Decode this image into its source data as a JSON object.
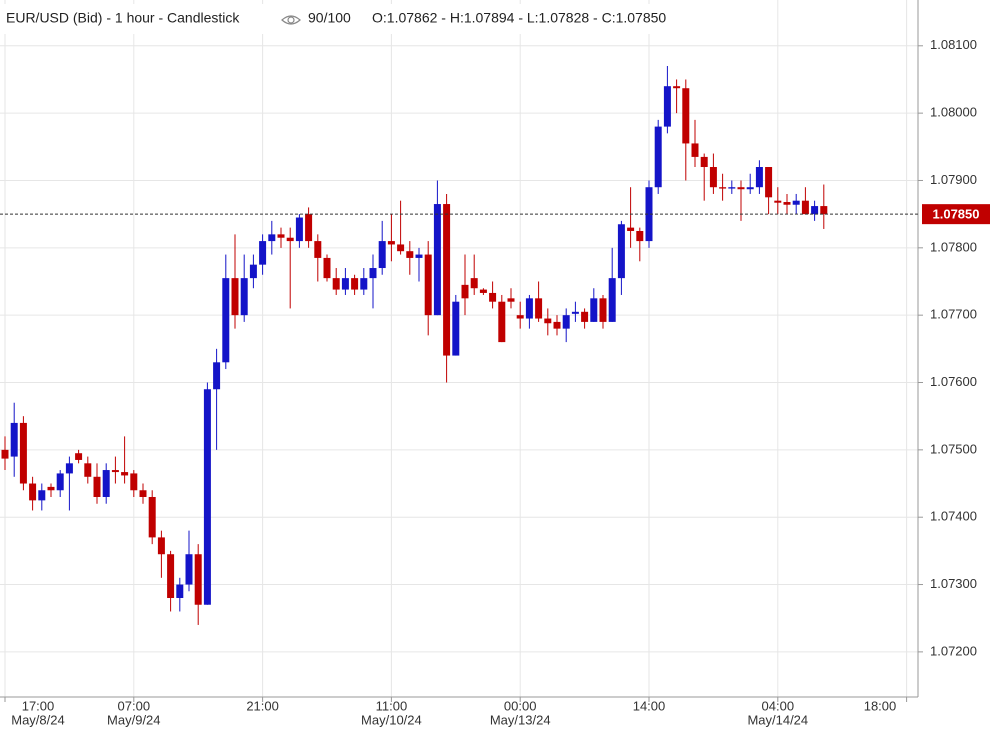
{
  "chart_data": {
    "type": "candlestick",
    "title": "EUR/USD (Bid) - 1 hour - Candlestick",
    "zoom": "90/100",
    "ohlc_summary": "O:1.07862 - H:1.07894 - L:1.07828 - C:1.07850",
    "up_color": "#1414c8",
    "down_color": "#c00000",
    "grid": true,
    "categories": [
      "17:00",
      null,
      null,
      null,
      null,
      null,
      null,
      null,
      null,
      null,
      null,
      null,
      null,
      null,
      "07:00",
      null,
      null,
      null,
      null,
      null,
      null,
      null,
      null,
      null,
      null,
      null,
      null,
      null,
      "21:00",
      null,
      null,
      null,
      null,
      null,
      null,
      null,
      null,
      null,
      null,
      null,
      null,
      null,
      "11:00",
      null,
      null,
      null,
      null,
      null,
      null,
      null,
      null,
      null,
      null,
      null,
      null,
      null,
      "00:00",
      null,
      null,
      null,
      null,
      null,
      null,
      null,
      null,
      null,
      null,
      null,
      null,
      null,
      "14:00",
      null,
      null,
      null,
      null,
      null,
      null,
      null,
      null,
      null,
      null,
      null,
      null,
      null,
      "04:00",
      null,
      null,
      null,
      null,
      null,
      null,
      null,
      null,
      null,
      null,
      null,
      null,
      null,
      "18:00"
    ],
    "dates": [
      "May/8/24",
      null,
      null,
      null,
      null,
      null,
      null,
      null,
      null,
      null,
      null,
      null,
      null,
      null,
      "May/9/24",
      null,
      null,
      null,
      null,
      null,
      null,
      null,
      null,
      null,
      null,
      null,
      null,
      null,
      null,
      null,
      null,
      null,
      null,
      null,
      null,
      null,
      null,
      null,
      null,
      null,
      null,
      null,
      "May/10/24",
      null,
      null,
      null,
      null,
      null,
      null,
      null,
      null,
      null,
      null,
      null,
      null,
      null,
      "May/13/24",
      null,
      null,
      null,
      null,
      null,
      null,
      null,
      null,
      null,
      null,
      null,
      null,
      null,
      null,
      null,
      null,
      null,
      null,
      null,
      null,
      null,
      null,
      null,
      null,
      null,
      null,
      null,
      "May/14/24",
      null,
      null,
      null,
      null,
      null,
      null,
      null,
      null,
      null,
      null,
      null,
      null,
      null,
      null
    ],
    "open": [
      1.075,
      1.0749,
      1.0754,
      1.0745,
      1.07425,
      1.07445,
      1.0744,
      1.07465,
      1.07495,
      1.0748,
      1.0746,
      1.0743,
      1.0747,
      1.07467,
      1.07465,
      1.0744,
      1.0743,
      1.0737,
      1.07345,
      1.0728,
      1.073,
      1.07345,
      1.0727,
      1.0759,
      1.0763,
      1.07755,
      1.077,
      1.07755,
      1.07775,
      1.0781,
      1.0782,
      1.07815,
      1.0781,
      1.0785,
      1.0781,
      1.07785,
      1.07755,
      1.07738,
      1.07755,
      1.07738,
      1.07755,
      1.0777,
      1.0781,
      1.07805,
      1.07795,
      1.07785,
      1.0779,
      1.077,
      1.07865,
      1.0764,
      1.07745,
      1.07755,
      1.07738,
      1.07733,
      1.0772,
      1.07725,
      1.077,
      1.07695,
      1.07725,
      1.07695,
      1.0769,
      1.0768,
      1.07702,
      1.07705,
      1.0769,
      1.07725,
      1.0769,
      1.07755,
      1.0783,
      1.07825,
      1.0781,
      1.0789,
      1.0798,
      1.0804,
      1.08037,
      1.07955,
      1.07935,
      1.0792,
      1.0789,
      1.07888,
      1.0789,
      1.07887,
      1.0789,
      1.0792,
      1.0787,
      1.07868,
      1.07864,
      1.0787,
      1.0785,
      1.07862,
      null,
      null,
      null,
      null,
      null,
      null,
      null,
      null,
      null
    ],
    "high": [
      1.0752,
      1.0757,
      1.0755,
      1.0746,
      1.0745,
      1.0745,
      1.0747,
      1.0749,
      1.075,
      1.0749,
      1.0748,
      1.0748,
      1.0749,
      1.0752,
      1.0747,
      1.0745,
      1.0744,
      1.0738,
      1.0735,
      1.0731,
      1.0738,
      1.0736,
      1.076,
      1.0765,
      1.0779,
      1.0782,
      1.0779,
      1.0779,
      1.0782,
      1.0784,
      1.0783,
      1.0783,
      1.0785,
      1.0786,
      1.0782,
      1.0779,
      1.0777,
      1.0777,
      1.0776,
      1.0777,
      1.0779,
      1.0784,
      1.0785,
      1.0787,
      1.0781,
      1.078,
      1.0781,
      1.079,
      1.0788,
      1.0773,
      1.0779,
      1.0779,
      1.0774,
      1.0775,
      1.0773,
      1.0774,
      1.0772,
      1.0773,
      1.0775,
      1.0771,
      1.077,
      1.0771,
      1.0772,
      1.0771,
      1.0774,
      1.0773,
      1.078,
      1.0784,
      1.0789,
      1.0783,
      1.079,
      1.0799,
      1.0807,
      1.0805,
      1.0805,
      1.0799,
      1.0794,
      1.0794,
      1.0791,
      1.079,
      1.079,
      1.0791,
      1.0793,
      1.0792,
      1.0789,
      1.0788,
      1.0788,
      1.0789,
      1.0787,
      1.07894,
      null,
      null,
      null,
      null,
      null,
      null,
      null,
      null,
      null
    ],
    "low": [
      1.0747,
      1.0746,
      1.0744,
      1.0741,
      1.0741,
      1.0743,
      1.0743,
      1.0741,
      1.0748,
      1.0745,
      1.0742,
      1.0742,
      1.0745,
      1.0745,
      1.0743,
      1.0742,
      1.0736,
      1.0731,
      1.0726,
      1.0726,
      1.0729,
      1.0724,
      1.0727,
      1.075,
      1.0762,
      1.0768,
      1.0769,
      1.0774,
      1.0776,
      1.0779,
      1.078,
      1.0771,
      1.078,
      1.078,
      1.0775,
      1.0775,
      1.0773,
      1.0773,
      1.0773,
      1.0773,
      1.0771,
      1.0776,
      1.0778,
      1.0779,
      1.0776,
      1.0775,
      1.0767,
      1.077,
      1.076,
      1.0764,
      1.077,
      1.0773,
      1.0773,
      1.0771,
      1.0766,
      1.0771,
      1.0768,
      1.0768,
      1.0769,
      1.0767,
      1.0767,
      1.0766,
      1.0769,
      1.0768,
      1.0769,
      1.0768,
      1.0769,
      1.0773,
      1.078,
      1.0778,
      1.078,
      1.0788,
      1.0797,
      1.08,
      1.079,
      1.0792,
      1.0787,
      1.0788,
      1.0787,
      1.0788,
      1.0784,
      1.0788,
      1.0788,
      1.0785,
      1.0785,
      1.0785,
      1.0785,
      1.0785,
      1.0784,
      1.07828,
      null,
      null,
      null,
      null,
      null,
      null,
      null,
      null,
      null
    ],
    "close": [
      1.07487,
      1.0754,
      1.0745,
      1.07425,
      1.0744,
      1.0744,
      1.07465,
      1.0748,
      1.07485,
      1.0746,
      1.0743,
      1.0747,
      1.07467,
      1.07462,
      1.0744,
      1.0743,
      1.0737,
      1.07345,
      1.0728,
      1.073,
      1.07345,
      1.0727,
      1.0759,
      1.0763,
      1.07755,
      1.077,
      1.07755,
      1.07775,
      1.0781,
      1.0782,
      1.07815,
      1.0781,
      1.07845,
      1.0781,
      1.07785,
      1.07755,
      1.07738,
      1.07755,
      1.07738,
      1.07755,
      1.0777,
      1.0781,
      1.07805,
      1.07795,
      1.07785,
      1.0779,
      1.077,
      1.07865,
      1.0764,
      1.0772,
      1.07725,
      1.0774,
      1.07733,
      1.0772,
      1.0766,
      1.0772,
      1.07695,
      1.07725,
      1.07695,
      1.07688,
      1.0768,
      1.077,
      1.07705,
      1.0769,
      1.07725,
      1.0769,
      1.07755,
      1.07835,
      1.07825,
      1.0781,
      1.0789,
      1.0798,
      1.0804,
      1.08037,
      1.07955,
      1.07935,
      1.0792,
      1.0789,
      1.07888,
      1.0789,
      1.07887,
      1.0789,
      1.0792,
      1.07875,
      1.07867,
      1.07864,
      1.0787,
      1.0785,
      1.07862,
      1.0785,
      null,
      null,
      null,
      null,
      null,
      null,
      null,
      null,
      null
    ],
    "ylim": [
      1.07133,
      1.08168
    ],
    "yticks": [
      {
        "value": 1.072,
        "label": "1.07200"
      },
      {
        "value": 1.073,
        "label": "1.07300"
      },
      {
        "value": 1.074,
        "label": "1.07400"
      },
      {
        "value": 1.075,
        "label": "1.07500"
      },
      {
        "value": 1.076,
        "label": "1.07600"
      },
      {
        "value": 1.077,
        "label": "1.07700"
      },
      {
        "value": 1.078,
        "label": "1.07800"
      },
      {
        "value": 1.079,
        "label": "1.07900"
      },
      {
        "value": 1.08,
        "label": "1.08000"
      },
      {
        "value": 1.081,
        "label": "1.08100"
      }
    ],
    "last_price": {
      "value": 1.0785,
      "label": "1.07850"
    },
    "last_price_color": "#c00000"
  }
}
